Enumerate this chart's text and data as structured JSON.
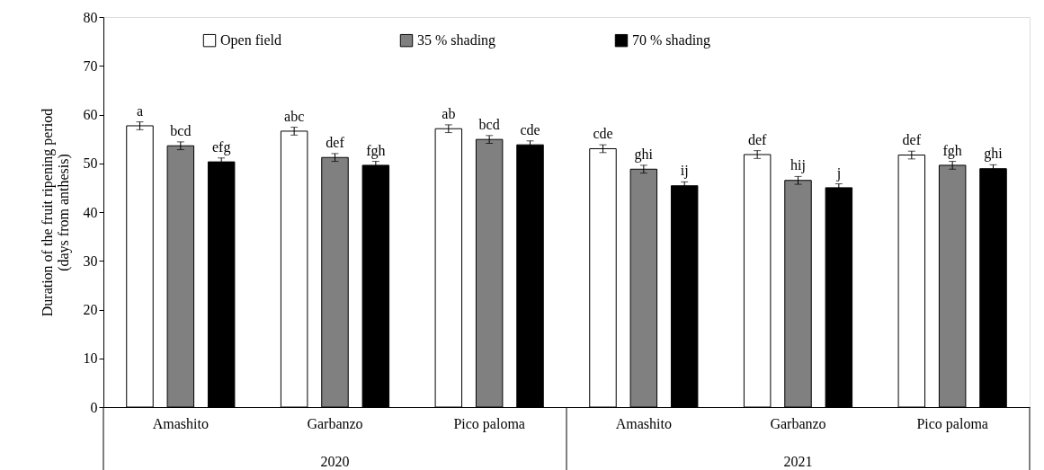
{
  "chart_data": {
    "type": "bar",
    "ylabel": "Duration of the fruit ripening period\n(days from anthesis)",
    "categories": [
      "Amashito",
      "Garbanzo",
      "Pico paloma",
      "Amashito",
      "Garbanzo",
      "Pico paloma"
    ],
    "series": [
      {
        "name": "Open field",
        "color": "#ffffff",
        "values": [
          57.7,
          56.6,
          57.1,
          53.0,
          51.8,
          51.7
        ],
        "errors": [
          0.8,
          0.8,
          0.8,
          0.8,
          0.8,
          0.8
        ],
        "value_labels": [
          "a",
          "abc",
          "ab",
          "cde",
          "def",
          "def"
        ]
      },
      {
        "name": "35 % shading",
        "color": "#808080",
        "values": [
          53.6,
          51.2,
          54.9,
          48.8,
          46.5,
          49.6
        ],
        "errors": [
          0.8,
          0.8,
          0.8,
          0.8,
          0.8,
          0.8
        ],
        "value_labels": [
          "bcd",
          "def",
          "bcd",
          "ghi",
          "hij",
          "fgh"
        ]
      },
      {
        "name": "70 % shading",
        "color": "#000000",
        "values": [
          50.3,
          49.6,
          53.8,
          45.4,
          45.0,
          48.9
        ],
        "errors": [
          0.8,
          0.8,
          0.8,
          0.8,
          0.8,
          0.8
        ],
        "value_labels": [
          "efg",
          "fgh",
          "cde",
          "ij",
          "j",
          "ghi"
        ]
      }
    ],
    "annotations": [
      "2020",
      "2021"
    ],
    "ylim": [
      0,
      80
    ],
    "yticks": [
      0,
      10,
      20,
      30,
      40,
      50,
      60,
      70,
      80
    ],
    "grid": false,
    "legend": "top"
  }
}
